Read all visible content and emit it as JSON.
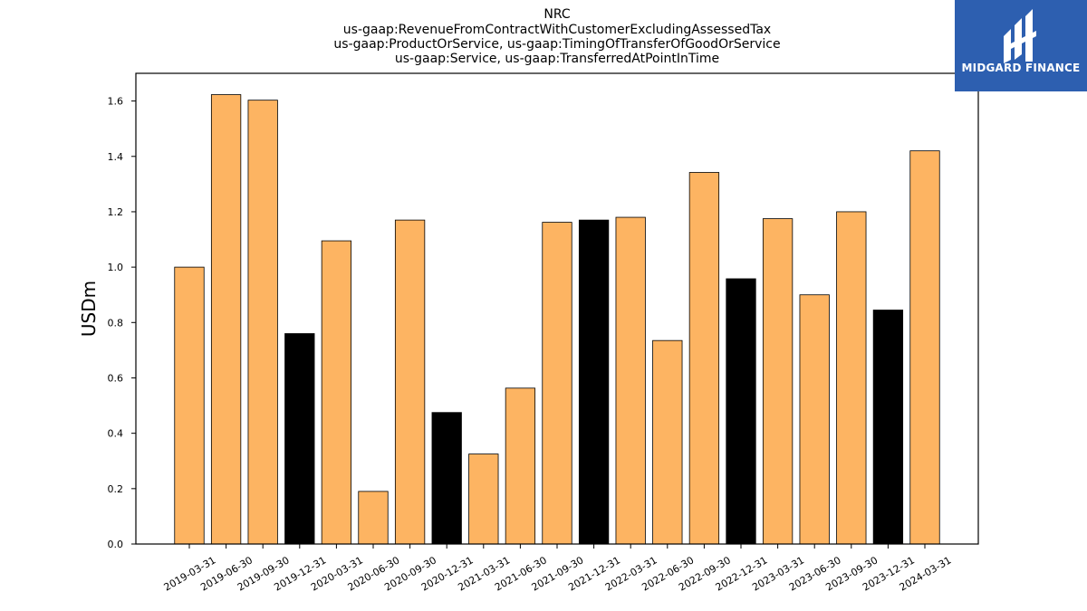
{
  "logo": {
    "text": "MIDGARD FINANCE",
    "icon": "midgard-logo-icon",
    "color": "#2d5fb0"
  },
  "chart_data": {
    "type": "bar",
    "title_lines": [
      "NRC",
      "us-gaap:RevenueFromContractWithCustomerExcludingAssessedTax",
      "us-gaap:ProductOrService, us-gaap:TimingOfTransferOfGoodOrService",
      "us-gaap:Service, us-gaap:TransferredAtPointInTime"
    ],
    "ylabel": "USDm",
    "ylim": [
      0,
      1.7
    ],
    "yticks": [
      "0.0",
      "0.2",
      "0.4",
      "0.6",
      "0.8",
      "1.0",
      "1.2",
      "1.4",
      "1.6"
    ],
    "colors": {
      "quarter": "#fdb462",
      "year_end": "#000000"
    },
    "categories": [
      "2019-03-31",
      "2019-06-30",
      "2019-09-30",
      "2019-12-31",
      "2020-03-31",
      "2020-06-30",
      "2020-09-30",
      "2020-12-31",
      "2021-03-31",
      "2021-06-30",
      "2021-09-30",
      "2021-12-31",
      "2022-03-31",
      "2022-06-30",
      "2022-09-30",
      "2022-12-31",
      "2023-03-31",
      "2023-06-30",
      "2023-09-30",
      "2023-12-31",
      "2024-03-31"
    ],
    "values": [
      1.0,
      1.623,
      1.603,
      0.76,
      1.095,
      0.19,
      1.17,
      0.475,
      0.325,
      0.563,
      1.162,
      1.17,
      1.18,
      0.735,
      1.342,
      0.958,
      1.175,
      0.9,
      1.2,
      0.845,
      1.42
    ],
    "highlight": [
      false,
      false,
      false,
      true,
      false,
      false,
      false,
      true,
      false,
      false,
      false,
      true,
      false,
      false,
      false,
      true,
      false,
      false,
      false,
      true,
      false
    ]
  }
}
